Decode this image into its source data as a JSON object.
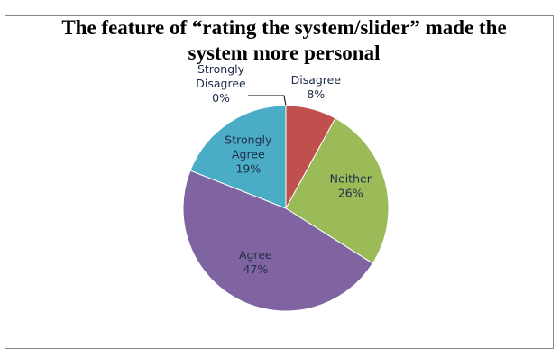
{
  "chart_data": {
    "type": "pie",
    "title": "The feature of “rating the system/slider” made the system more personal",
    "categories": [
      "Strongly Disagree",
      "Disagree",
      "Neither",
      "Agree",
      "Strongly Agree"
    ],
    "values": [
      0,
      8,
      26,
      47,
      19
    ],
    "value_labels": [
      "0%",
      "8%",
      "26%",
      "47%",
      "19%"
    ],
    "colors": [
      "#4f81bd",
      "#c0504d",
      "#9bbb59",
      "#8064a2",
      "#4bacc6"
    ]
  }
}
